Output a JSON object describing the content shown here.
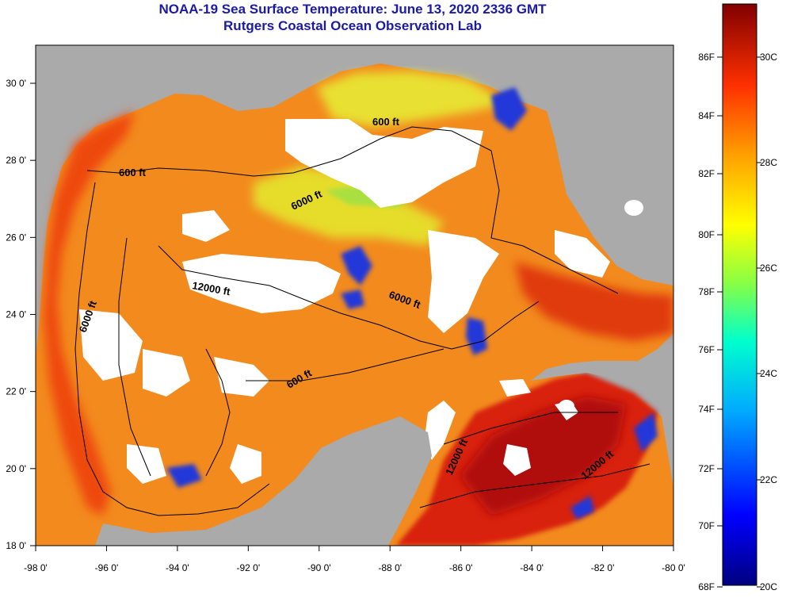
{
  "title": "NOAA-19 Sea Surface Temperature:  June 13, 2020 2336 GMT",
  "subtitle": "Rutgers Coastal Ocean Observation Lab",
  "lat_ticks": [
    "30 0'",
    "28 0'",
    "26 0'",
    "24 0'",
    "22 0'",
    "20 0'",
    "18 0'"
  ],
  "lon_ticks": [
    "-98 0'",
    "-96 0'",
    "-94 0'",
    "-92 0'",
    "-90 0'",
    "-88 0'",
    "-86 0'",
    "-84 0'",
    "-82 0'",
    "-80 0'"
  ],
  "contours": {
    "c600_north": "600 ft",
    "c600_central": "600 ft",
    "c600_ne": "600 ft",
    "c6000_north": "6000 ft",
    "c6000_west": "6000 ft",
    "c6000_east": "6000 ft",
    "c12000_central": "12000 ft",
    "c12000_south": "12000 ft",
    "c12000_se": "12000 ft"
  },
  "colorbar": {
    "f_labels": [
      "86F",
      "84F",
      "82F",
      "80F",
      "78F",
      "76F",
      "74F",
      "72F",
      "70F",
      "68F"
    ],
    "c_labels": [
      "30C",
      "28C",
      "26C",
      "24C",
      "22C",
      "20C"
    ]
  },
  "colors": {
    "land": "#aaaaaa",
    "cloud": "#ffffff",
    "title": "#1a1aa6"
  }
}
